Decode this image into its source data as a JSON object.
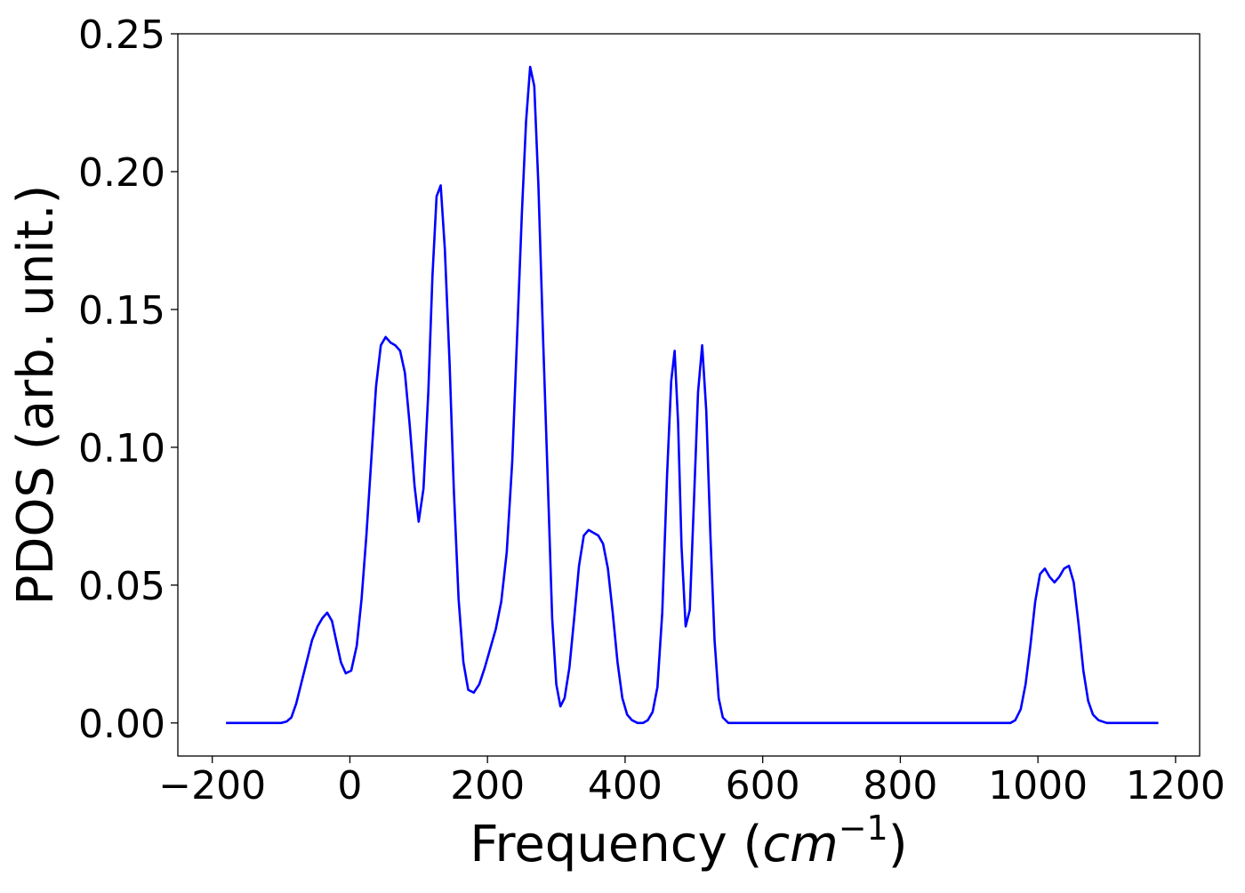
{
  "chart_data": {
    "type": "line",
    "title": "",
    "xlabel": "Frequency (",
    "xlabel_math": "cm",
    "xlabel_exponent": "−1",
    "xlabel_suffix": ")",
    "ylabel": "PDOS (arb. unit.)",
    "xlim": [
      -250,
      1235
    ],
    "ylim": [
      -0.012,
      0.25
    ],
    "xticks": [
      -200,
      0,
      200,
      400,
      600,
      800,
      1000,
      1200
    ],
    "xtick_labels": [
      "−200",
      "0",
      "200",
      "400",
      "600",
      "800",
      "1000",
      "1200"
    ],
    "yticks": [
      0.0,
      0.05,
      0.1,
      0.15,
      0.2,
      0.25
    ],
    "ytick_labels": [
      "0.00",
      "0.05",
      "0.10",
      "0.15",
      "0.20",
      "0.25"
    ],
    "grid": false,
    "legend": "none",
    "series": [
      {
        "color": "#0000ff",
        "points": [
          [
            -180,
            0.0
          ],
          [
            -100,
            0.0
          ],
          [
            -92,
            0.0005
          ],
          [
            -85,
            0.002
          ],
          [
            -78,
            0.007
          ],
          [
            -70,
            0.015
          ],
          [
            -62,
            0.023
          ],
          [
            -55,
            0.03
          ],
          [
            -47,
            0.035
          ],
          [
            -40,
            0.038
          ],
          [
            -33,
            0.04
          ],
          [
            -26,
            0.037
          ],
          [
            -20,
            0.03
          ],
          [
            -13,
            0.022
          ],
          [
            -6,
            0.018
          ],
          [
            2,
            0.019
          ],
          [
            10,
            0.028
          ],
          [
            17,
            0.045
          ],
          [
            24,
            0.068
          ],
          [
            31,
            0.095
          ],
          [
            38,
            0.122
          ],
          [
            45,
            0.137
          ],
          [
            52,
            0.14
          ],
          [
            59,
            0.138
          ],
          [
            66,
            0.137
          ],
          [
            73,
            0.135
          ],
          [
            80,
            0.127
          ],
          [
            87,
            0.108
          ],
          [
            94,
            0.086
          ],
          [
            100,
            0.073
          ],
          [
            107,
            0.085
          ],
          [
            114,
            0.12
          ],
          [
            120,
            0.162
          ],
          [
            126,
            0.191
          ],
          [
            132,
            0.195
          ],
          [
            138,
            0.172
          ],
          [
            145,
            0.13
          ],
          [
            151,
            0.085
          ],
          [
            158,
            0.045
          ],
          [
            165,
            0.022
          ],
          [
            172,
            0.012
          ],
          [
            180,
            0.011
          ],
          [
            188,
            0.014
          ],
          [
            196,
            0.02
          ],
          [
            204,
            0.027
          ],
          [
            212,
            0.034
          ],
          [
            220,
            0.044
          ],
          [
            228,
            0.062
          ],
          [
            236,
            0.095
          ],
          [
            243,
            0.14
          ],
          [
            250,
            0.185
          ],
          [
            256,
            0.218
          ],
          [
            262,
            0.238
          ],
          [
            268,
            0.231
          ],
          [
            274,
            0.195
          ],
          [
            281,
            0.138
          ],
          [
            288,
            0.085
          ],
          [
            294,
            0.038
          ],
          [
            300,
            0.014
          ],
          [
            306,
            0.006
          ],
          [
            312,
            0.009
          ],
          [
            319,
            0.02
          ],
          [
            326,
            0.038
          ],
          [
            333,
            0.057
          ],
          [
            340,
            0.068
          ],
          [
            347,
            0.07
          ],
          [
            354,
            0.069
          ],
          [
            361,
            0.068
          ],
          [
            368,
            0.065
          ],
          [
            375,
            0.056
          ],
          [
            382,
            0.04
          ],
          [
            389,
            0.022
          ],
          [
            396,
            0.009
          ],
          [
            403,
            0.003
          ],
          [
            410,
            0.001
          ],
          [
            418,
            0.0
          ],
          [
            426,
            0.0
          ],
          [
            433,
            0.001
          ],
          [
            440,
            0.004
          ],
          [
            447,
            0.013
          ],
          [
            454,
            0.04
          ],
          [
            461,
            0.09
          ],
          [
            467,
            0.124
          ],
          [
            472,
            0.135
          ],
          [
            477,
            0.109
          ],
          [
            482,
            0.064
          ],
          [
            488,
            0.035
          ],
          [
            494,
            0.041
          ],
          [
            500,
            0.08
          ],
          [
            506,
            0.12
          ],
          [
            512,
            0.137
          ],
          [
            518,
            0.113
          ],
          [
            524,
            0.068
          ],
          [
            530,
            0.03
          ],
          [
            536,
            0.009
          ],
          [
            542,
            0.002
          ],
          [
            550,
            0.0
          ],
          [
            960,
            0.0
          ],
          [
            967,
            0.001
          ],
          [
            975,
            0.005
          ],
          [
            982,
            0.014
          ],
          [
            989,
            0.028
          ],
          [
            996,
            0.044
          ],
          [
            1003,
            0.054
          ],
          [
            1010,
            0.056
          ],
          [
            1017,
            0.053
          ],
          [
            1024,
            0.051
          ],
          [
            1031,
            0.053
          ],
          [
            1038,
            0.056
          ],
          [
            1045,
            0.057
          ],
          [
            1052,
            0.051
          ],
          [
            1059,
            0.036
          ],
          [
            1066,
            0.019
          ],
          [
            1073,
            0.008
          ],
          [
            1080,
            0.003
          ],
          [
            1088,
            0.001
          ],
          [
            1100,
            0.0
          ],
          [
            1175,
            0.0
          ]
        ]
      }
    ]
  }
}
